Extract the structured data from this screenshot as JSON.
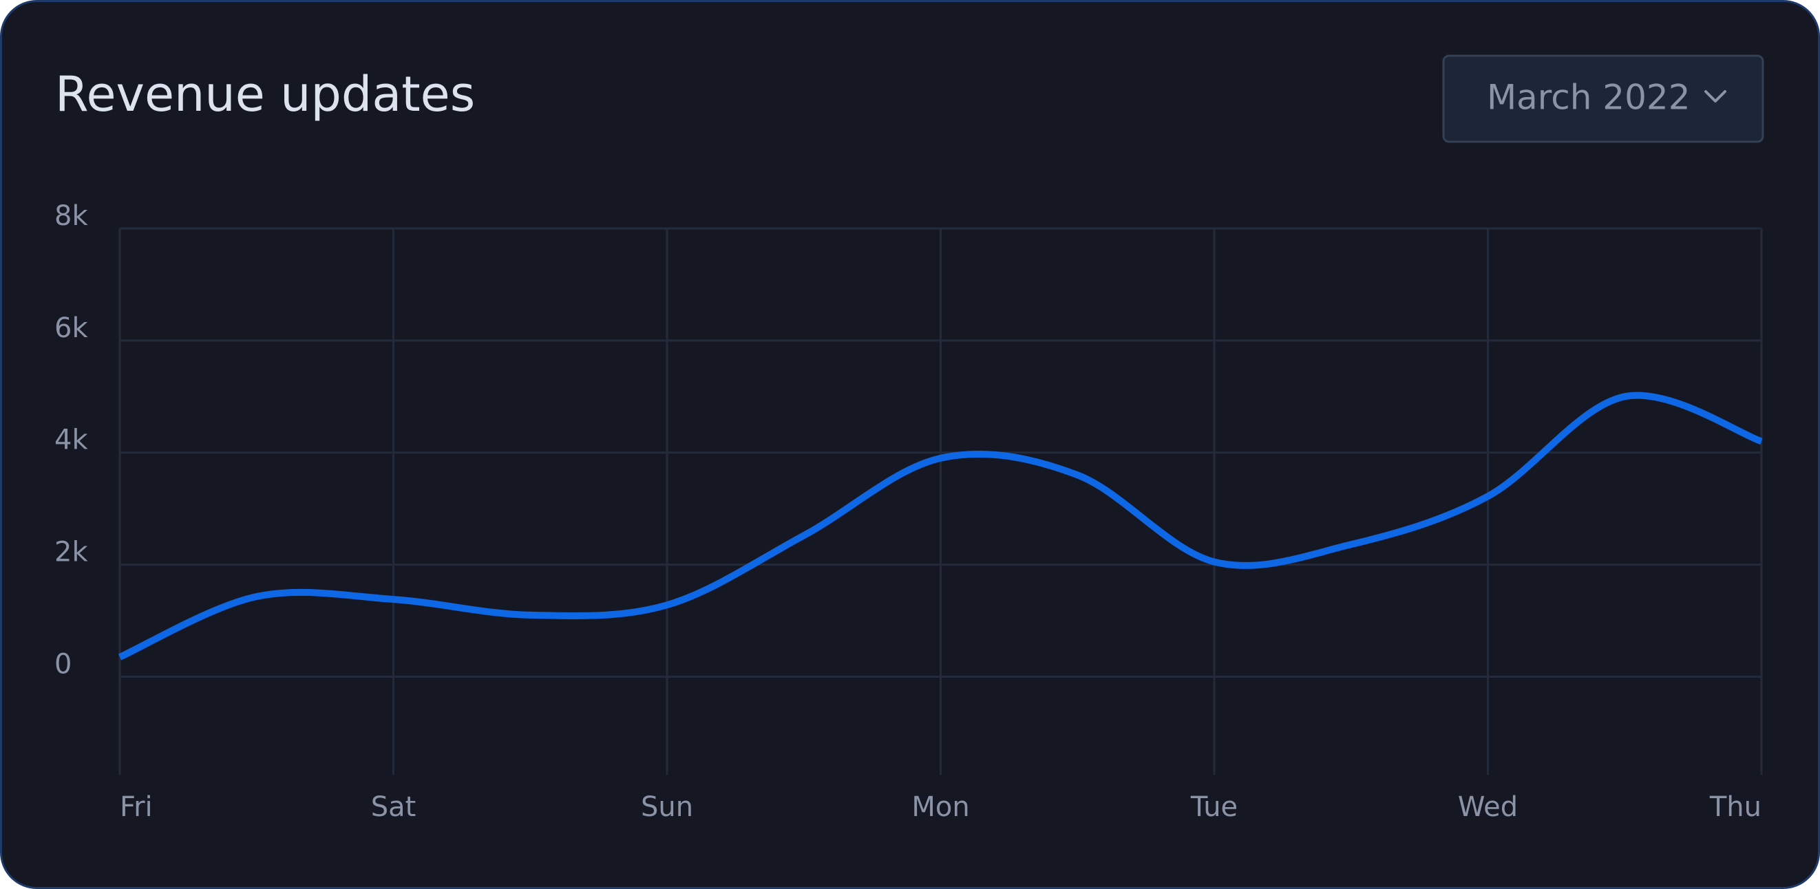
{
  "header": {
    "title": "Revenue updates",
    "dropdown": "March 2022"
  },
  "chart_data": {
    "type": "line",
    "categories": [
      "Fri",
      null,
      "Sat",
      null,
      "Sun",
      null,
      "Mon",
      null,
      "Tue",
      null,
      "Wed",
      null,
      "Thu"
    ],
    "values": [
      350,
      1430,
      1380,
      1100,
      1280,
      2520,
      3900,
      3600,
      2050,
      2360,
      3220,
      5000,
      4200
    ],
    "color": "#0e68e6",
    "ylim": [
      -1750,
      8000
    ],
    "yticks": [
      0,
      {
        "value": 2000,
        "label": "2k"
      },
      {
        "value": 4000,
        "label": "4k"
      },
      {
        "value": 6000,
        "label": "6k"
      },
      {
        "value": 8000,
        "label": "8k"
      }
    ],
    "grid": true
  }
}
